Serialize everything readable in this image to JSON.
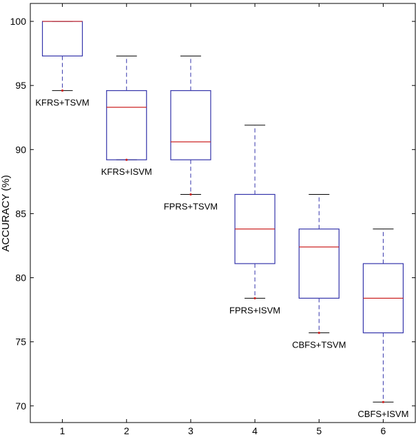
{
  "chart_data": {
    "type": "box",
    "title": "",
    "xlabel": "",
    "ylabel": "ACCURACY (%)",
    "xlim": [
      0.5,
      6.5
    ],
    "ylim": [
      68.7,
      101.4
    ],
    "x_ticks": [
      "1",
      "2",
      "3",
      "4",
      "5",
      "6"
    ],
    "y_ticks": [
      "70",
      "75",
      "80",
      "85",
      "90",
      "95",
      "100"
    ],
    "grid": false,
    "colors": {
      "box": "#3333aa",
      "median": "#cc2222",
      "whisker": "#3333aa",
      "outlier": "#cc2222"
    },
    "boxes": [
      {
        "x": 1,
        "label": "KFRS+TSVM",
        "min": 94.6,
        "q1": 97.3,
        "median": 100.0,
        "q3": 100.0,
        "max": 100.0
      },
      {
        "x": 2,
        "label": "KFRS+ISVM",
        "min": 89.2,
        "q1": 89.2,
        "median": 93.3,
        "q3": 94.6,
        "max": 97.3
      },
      {
        "x": 3,
        "label": "FPRS+TSVM",
        "min": 86.5,
        "q1": 89.2,
        "median": 90.6,
        "q3": 94.6,
        "max": 97.3
      },
      {
        "x": 4,
        "label": "FPRS+ISVM",
        "min": 78.4,
        "q1": 81.1,
        "median": 83.8,
        "q3": 86.5,
        "max": 91.9
      },
      {
        "x": 5,
        "label": "CBFS+TSVM",
        "min": 75.7,
        "q1": 78.4,
        "median": 82.4,
        "q3": 83.8,
        "max": 86.5
      },
      {
        "x": 6,
        "label": "CBFS+ISVM",
        "min": 70.3,
        "q1": 75.7,
        "median": 78.4,
        "q3": 81.1,
        "max": 83.8
      }
    ]
  }
}
